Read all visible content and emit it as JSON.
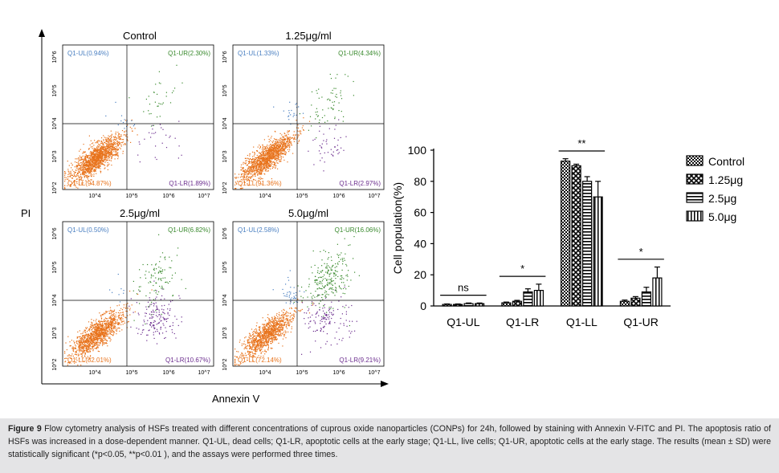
{
  "figure": {
    "y_axis_label": "PI",
    "x_axis_label": "Annexin V",
    "flow_tick_labels": {
      "y": [
        "10^6",
        "10^5",
        "10^4",
        "10^3",
        "10^2"
      ],
      "x": [
        "10^4",
        "10^5",
        "10^6",
        "10^7"
      ]
    },
    "flow_panels": [
      {
        "title": "Control",
        "ul": "Q1-UL(0.94%)",
        "ur": "Q1-UR(2.30%)",
        "ll": "Q1-LL(94.87%)",
        "lr": "Q1-LR(1.89%)",
        "percent": {
          "ul": 0.94,
          "ur": 2.3,
          "ll": 94.87,
          "lr": 1.89
        }
      },
      {
        "title": "1.25μg/ml",
        "ul": "Q1-UL(1.33%)",
        "ur": "Q1-UR(4.34%)",
        "ll": "Q1-LL(91.36%)",
        "lr": "Q1-LR(2.97%)",
        "percent": {
          "ul": 1.33,
          "ur": 4.34,
          "ll": 91.36,
          "lr": 2.97
        }
      },
      {
        "title": "2.5μg/ml",
        "ul": "Q1-UL(0.50%)",
        "ur": "Q1-UR(6.82%)",
        "ll": "Q1-LL(82.01%)",
        "lr": "Q1-LR(10.67%)",
        "percent": {
          "ul": 0.5,
          "ur": 6.82,
          "ll": 82.01,
          "lr": 10.67
        }
      },
      {
        "title": "5.0μg/ml",
        "ul": "Q1-UL(2.58%)",
        "ur": "Q1-UR(16.06%)",
        "ll": "Q1-LL(72.14%)",
        "lr": "Q1-LR(9.21%)",
        "percent": {
          "ul": 2.58,
          "ur": 16.06,
          "ll": 72.14,
          "lr": 9.21
        }
      }
    ],
    "colors": {
      "ul": "#4a7fc1",
      "ur": "#3a8a2e",
      "ll": "#e8731c",
      "lr": "#6b2d8e"
    }
  },
  "chart_data": {
    "type": "bar",
    "ylabel": "Cell population(%)",
    "ylim": [
      0,
      100
    ],
    "yticks": [
      "0",
      "20",
      "40",
      "60",
      "80",
      "100"
    ],
    "categories": [
      "Q1-UL",
      "Q1-LR",
      "Q1-LL",
      "Q1-UR"
    ],
    "series": [
      {
        "name": "Control",
        "values": [
          1,
          2,
          93,
          3
        ],
        "errors": [
          0.3,
          0.5,
          1.5,
          0.8
        ]
      },
      {
        "name": "1.25μg",
        "values": [
          1,
          3,
          90,
          5
        ],
        "errors": [
          0.3,
          0.6,
          1,
          1
        ]
      },
      {
        "name": "2.5μg",
        "values": [
          1.5,
          9,
          80,
          9
        ],
        "errors": [
          0.4,
          2,
          3,
          3
        ]
      },
      {
        "name": "5.0μg",
        "values": [
          1.5,
          10,
          70,
          18
        ],
        "errors": [
          0.4,
          4,
          10,
          7
        ]
      }
    ],
    "significance": [
      "ns",
      "*",
      "**",
      "*"
    ],
    "legend_position": "right"
  },
  "caption": {
    "label": "Figure 9",
    "text": " Flow cytometry analysis of HSFs treated with different concentrations of cuprous oxide nanoparticles (CONPs) for 24h, followed by staining with Annexin V-FITC and PI. The apoptosis ratio of HSFs was increased in a dose-dependent manner. Q1-UL, dead cells; Q1-LR, apoptotic cells at the early stage; Q1-LL, live cells; Q1-UR, apoptotic cells at the early stage. The results (mean ± SD) were statistically significant (*p<0.05, **p<0.01 ), and the assays were performed three times."
  }
}
